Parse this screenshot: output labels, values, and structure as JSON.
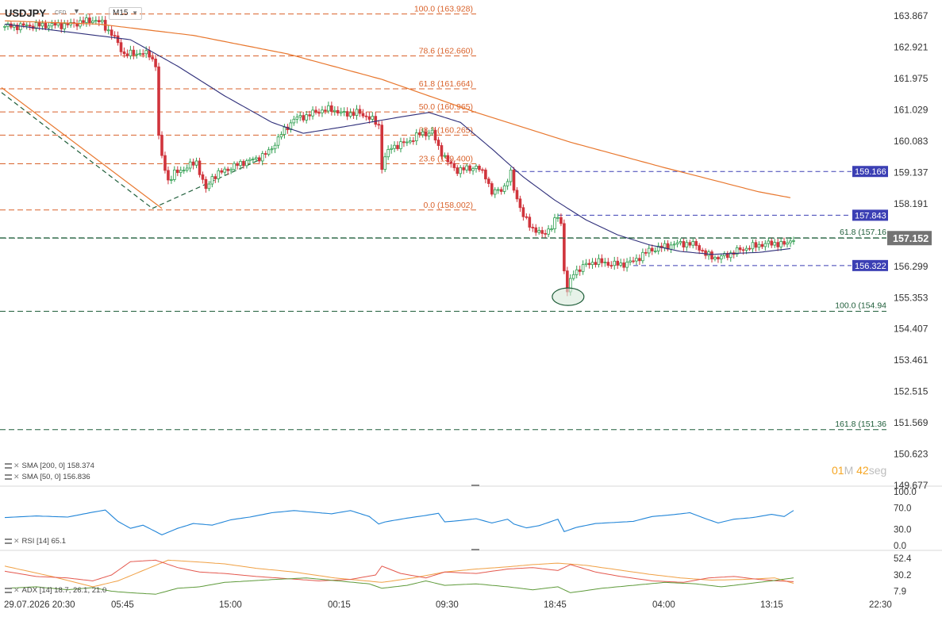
{
  "header": {
    "symbol": "USDJPY",
    "instrument_type": "CFD",
    "timeframe": "M15"
  },
  "colors": {
    "bull": "#2e9e4f",
    "bear": "#d0343c",
    "sma200": "#e8772e",
    "sma50": "#2f2f7a",
    "fib_upper": "#d9622b",
    "fib_lower": "#1f5e3a",
    "level_box": "#3b3fb4",
    "rsi": "#2185d8",
    "last_price_box": "#737373"
  },
  "indicators": {
    "sma200_label": "SMA [200, 0] 158.374",
    "sma50_label": "SMA [50, 0] 156.836",
    "rsi_label": "RSI [14] 65.1",
    "adx_label": "ADX [14] 18.7, 26.1, 21.0"
  },
  "countdown": {
    "minutes": "01",
    "minutes_unit": "M",
    "seconds": "42",
    "seconds_unit": "seg"
  },
  "chart_data": {
    "type": "candlestick",
    "price_axis_ticks": [
      "163.867",
      "162.921",
      "161.975",
      "161.029",
      "160.083",
      "159.137",
      "158.191",
      "157.245",
      "156.299",
      "155.353",
      "154.407",
      "153.461",
      "152.515",
      "151.569",
      "150.623",
      "149.677"
    ],
    "price_range": [
      149.677,
      164.35
    ],
    "time_axis_labels": [
      "29.07.2026 20:30",
      "05:45",
      "15:00",
      "00:15",
      "09:30",
      "18:45",
      "04:00",
      "13:15",
      "22:30"
    ],
    "last_price": "157.152",
    "price_lines": [
      {
        "value": 159.166,
        "label": "159.166",
        "style": "dashed",
        "extends_from_bar": 162
      },
      {
        "value": 157.843,
        "label": "157.843",
        "style": "dashed",
        "extends_from_bar": 176
      },
      {
        "value": 156.322,
        "label": "156.322",
        "style": "dashed",
        "extends_from_bar": 200
      }
    ],
    "fibonacci_retracement": {
      "levels": [
        {
          "label": "100.0 (163.928)",
          "value": 163.928
        },
        {
          "label": "78.6 (162.660)",
          "value": 162.66
        },
        {
          "label": "61.8 (161.664)",
          "value": 161.664
        },
        {
          "label": "50.0 (160.965)",
          "value": 160.965
        },
        {
          "label": "38.2 (160.265)",
          "value": 160.265
        },
        {
          "label": "23.6 (159.400)",
          "value": 159.4
        },
        {
          "label": "0.0 (158.002)",
          "value": 158.002
        }
      ]
    },
    "fibonacci_extension": {
      "levels": [
        {
          "label": "61.8 (157.16",
          "value": 157.16
        },
        {
          "label": "100.0 (154.94",
          "value": 154.94
        },
        {
          "label": "161.8 (151.36",
          "value": 151.36
        }
      ]
    },
    "price_waypoints": [
      [
        0,
        163.55
      ],
      [
        10,
        163.58
      ],
      [
        20,
        163.6
      ],
      [
        28,
        163.75
      ],
      [
        31,
        163.65
      ],
      [
        35,
        163.2
      ],
      [
        38,
        162.7
      ],
      [
        43,
        162.75
      ],
      [
        46,
        162.7
      ],
      [
        48,
        162.4
      ],
      [
        49,
        160.2
      ],
      [
        50,
        159.6
      ],
      [
        52,
        158.9
      ],
      [
        54,
        159.1
      ],
      [
        58,
        159.3
      ],
      [
        61,
        159.45
      ],
      [
        64,
        158.6
      ],
      [
        66,
        159.0
      ],
      [
        70,
        159.2
      ],
      [
        76,
        159.45
      ],
      [
        80,
        159.55
      ],
      [
        84,
        159.75
      ],
      [
        88,
        160.3
      ],
      [
        92,
        160.75
      ],
      [
        96,
        160.85
      ],
      [
        100,
        161.0
      ],
      [
        104,
        161.05
      ],
      [
        108,
        160.9
      ],
      [
        112,
        160.95
      ],
      [
        116,
        160.8
      ],
      [
        119,
        160.55
      ],
      [
        120,
        159.3
      ],
      [
        121,
        159.6
      ],
      [
        123,
        159.9
      ],
      [
        128,
        160.05
      ],
      [
        132,
        160.3
      ],
      [
        136,
        160.35
      ],
      [
        138,
        159.9
      ],
      [
        141,
        159.45
      ],
      [
        144,
        159.2
      ],
      [
        150,
        159.3
      ],
      [
        153,
        159.05
      ],
      [
        155,
        158.5
      ],
      [
        159,
        158.7
      ],
      [
        161,
        159.1
      ],
      [
        162,
        158.65
      ],
      [
        165,
        157.8
      ],
      [
        168,
        157.45
      ],
      [
        171,
        157.25
      ],
      [
        174,
        157.5
      ],
      [
        176,
        157.8
      ],
      [
        177,
        157.6
      ],
      [
        178,
        156.2
      ],
      [
        179,
        155.55
      ],
      [
        181,
        156.1
      ],
      [
        184,
        156.3
      ],
      [
        188,
        156.45
      ],
      [
        192,
        156.38
      ],
      [
        196,
        156.35
      ],
      [
        200,
        156.45
      ],
      [
        205,
        156.78
      ],
      [
        210,
        156.9
      ],
      [
        215,
        157.0
      ],
      [
        220,
        156.95
      ],
      [
        223,
        156.65
      ],
      [
        227,
        156.55
      ],
      [
        230,
        156.65
      ],
      [
        234,
        156.8
      ],
      [
        240,
        156.95
      ],
      [
        245,
        157.0
      ],
      [
        248,
        156.95
      ],
      [
        251,
        157.15
      ]
    ],
    "sma200_waypoints": [
      [
        0,
        163.72
      ],
      [
        30,
        163.62
      ],
      [
        60,
        163.28
      ],
      [
        90,
        162.72
      ],
      [
        120,
        161.95
      ],
      [
        150,
        160.95
      ],
      [
        180,
        160.05
      ],
      [
        210,
        159.28
      ],
      [
        240,
        158.55
      ],
      [
        250,
        158.374
      ]
    ],
    "sma50_waypoints": [
      [
        0,
        163.62
      ],
      [
        40,
        163.15
      ],
      [
        55,
        162.35
      ],
      [
        70,
        161.45
      ],
      [
        85,
        160.65
      ],
      [
        95,
        160.32
      ],
      [
        110,
        160.55
      ],
      [
        125,
        160.8
      ],
      [
        135,
        160.95
      ],
      [
        145,
        160.65
      ],
      [
        155,
        159.85
      ],
      [
        165,
        159.0
      ],
      [
        175,
        158.3
      ],
      [
        185,
        157.7
      ],
      [
        195,
        157.25
      ],
      [
        205,
        156.95
      ],
      [
        215,
        156.75
      ],
      [
        225,
        156.66
      ],
      [
        240,
        156.72
      ],
      [
        250,
        156.836
      ]
    ],
    "rsi": {
      "range": [
        0,
        100
      ],
      "ticks": [
        "100.0",
        "70.0",
        "30.0",
        "0.0"
      ],
      "last": 65.1,
      "waypoints": [
        [
          0,
          52
        ],
        [
          10,
          55
        ],
        [
          20,
          53
        ],
        [
          28,
          62
        ],
        [
          32,
          66
        ],
        [
          36,
          45
        ],
        [
          40,
          32
        ],
        [
          44,
          38
        ],
        [
          48,
          26
        ],
        [
          50,
          20
        ],
        [
          55,
          32
        ],
        [
          60,
          41
        ],
        [
          66,
          38
        ],
        [
          72,
          48
        ],
        [
          78,
          53
        ],
        [
          85,
          61
        ],
        [
          92,
          65
        ],
        [
          98,
          62
        ],
        [
          104,
          59
        ],
        [
          110,
          65
        ],
        [
          116,
          54
        ],
        [
          119,
          40
        ],
        [
          121,
          44
        ],
        [
          128,
          51
        ],
        [
          134,
          56
        ],
        [
          138,
          60
        ],
        [
          140,
          44
        ],
        [
          144,
          46
        ],
        [
          150,
          50
        ],
        [
          155,
          42
        ],
        [
          160,
          49
        ],
        [
          162,
          40
        ],
        [
          166,
          33
        ],
        [
          170,
          37
        ],
        [
          176,
          49
        ],
        [
          178,
          26
        ],
        [
          182,
          34
        ],
        [
          188,
          41
        ],
        [
          194,
          43
        ],
        [
          200,
          45
        ],
        [
          206,
          54
        ],
        [
          212,
          57
        ],
        [
          218,
          61
        ],
        [
          223,
          50
        ],
        [
          227,
          42
        ],
        [
          232,
          49
        ],
        [
          238,
          52
        ],
        [
          244,
          58
        ],
        [
          248,
          54
        ],
        [
          251,
          65.1
        ]
      ]
    },
    "adx": {
      "ticks": [
        "52.4",
        "30.2",
        "7.9"
      ],
      "adx_last": 18.7,
      "di_plus_last": 26.1,
      "di_minus_last": 21.0,
      "adx_waypoints": [
        [
          0,
          42
        ],
        [
          15,
          28
        ],
        [
          28,
          14
        ],
        [
          36,
          22
        ],
        [
          44,
          36
        ],
        [
          52,
          50
        ],
        [
          60,
          48
        ],
        [
          70,
          45
        ],
        [
          80,
          39
        ],
        [
          92,
          34
        ],
        [
          105,
          26
        ],
        [
          120,
          20
        ],
        [
          130,
          26
        ],
        [
          140,
          34
        ],
        [
          150,
          38
        ],
        [
          160,
          41
        ],
        [
          168,
          44
        ],
        [
          176,
          46
        ],
        [
          185,
          43
        ],
        [
          195,
          37
        ],
        [
          205,
          31
        ],
        [
          215,
          26
        ],
        [
          225,
          23
        ],
        [
          235,
          24
        ],
        [
          245,
          26
        ],
        [
          251,
          18.7
        ]
      ],
      "di_plus_waypoints": [
        [
          0,
          12
        ],
        [
          10,
          14
        ],
        [
          20,
          10
        ],
        [
          28,
          13
        ],
        [
          34,
          8
        ],
        [
          40,
          6
        ],
        [
          48,
          4
        ],
        [
          55,
          12
        ],
        [
          62,
          14
        ],
        [
          70,
          20
        ],
        [
          78,
          22
        ],
        [
          86,
          24
        ],
        [
          96,
          26
        ],
        [
          106,
          22
        ],
        [
          116,
          18
        ],
        [
          120,
          12
        ],
        [
          128,
          16
        ],
        [
          134,
          22
        ],
        [
          140,
          16
        ],
        [
          150,
          18
        ],
        [
          160,
          14
        ],
        [
          168,
          10
        ],
        [
          176,
          14
        ],
        [
          180,
          6
        ],
        [
          190,
          12
        ],
        [
          200,
          16
        ],
        [
          210,
          20
        ],
        [
          220,
          18
        ],
        [
          228,
          14
        ],
        [
          236,
          18
        ],
        [
          244,
          22
        ],
        [
          251,
          26.1
        ]
      ],
      "di_minus_waypoints": [
        [
          0,
          35
        ],
        [
          10,
          28
        ],
        [
          20,
          26
        ],
        [
          28,
          22
        ],
        [
          34,
          30
        ],
        [
          40,
          48
        ],
        [
          48,
          50
        ],
        [
          55,
          40
        ],
        [
          62,
          34
        ],
        [
          70,
          32
        ],
        [
          80,
          28
        ],
        [
          90,
          25
        ],
        [
          100,
          22
        ],
        [
          110,
          24
        ],
        [
          118,
          30
        ],
        [
          120,
          42
        ],
        [
          126,
          32
        ],
        [
          134,
          26
        ],
        [
          140,
          34
        ],
        [
          150,
          32
        ],
        [
          160,
          38
        ],
        [
          168,
          40
        ],
        [
          176,
          36
        ],
        [
          180,
          44
        ],
        [
          188,
          34
        ],
        [
          196,
          28
        ],
        [
          206,
          22
        ],
        [
          216,
          20
        ],
        [
          224,
          26
        ],
        [
          232,
          28
        ],
        [
          240,
          24
        ],
        [
          246,
          22
        ],
        [
          251,
          21.0
        ]
      ]
    }
  }
}
